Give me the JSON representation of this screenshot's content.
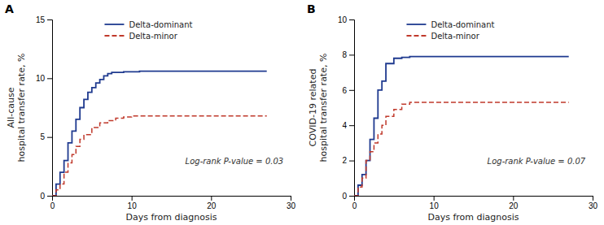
{
  "chart_data": [
    {
      "type": "step",
      "title": "A",
      "xlabel": "Days from diagnosis",
      "ylabel": "All-cause\nhospital transfer rate, %",
      "annotation": "Log-rank P-value = 0.03",
      "xlim": [
        0,
        30
      ],
      "xticks": [
        0,
        10,
        20,
        30
      ],
      "ylim": [
        0,
        15
      ],
      "yticks": [
        0,
        5,
        10,
        15
      ],
      "grid": false,
      "legend": "upper left",
      "series": [
        {
          "name": "Delta-dominant",
          "color": "#1f3a8f",
          "line_style": "solid",
          "x": [
            0,
            0.5,
            0.5,
            1,
            1,
            1.5,
            1.5,
            2,
            2,
            2.5,
            2.5,
            3,
            3,
            3.5,
            3.5,
            4,
            4,
            4.5,
            4.5,
            5,
            5,
            5.5,
            5.5,
            6,
            6,
            6.5,
            6.5,
            7,
            7,
            7.5,
            7.5,
            8,
            8,
            8.5,
            8.5,
            9,
            9,
            10,
            10,
            11,
            11,
            21,
            21,
            27
          ],
          "values": [
            0,
            0,
            1.0,
            1.0,
            2.0,
            2.0,
            3.0,
            3.0,
            4.5,
            4.5,
            5.5,
            5.5,
            6.5,
            6.5,
            7.5,
            7.5,
            8.2,
            8.2,
            8.8,
            8.8,
            9.2,
            9.2,
            9.6,
            9.6,
            9.9,
            9.9,
            10.2,
            10.2,
            10.4,
            10.4,
            10.5,
            10.5,
            10.5,
            10.5,
            10.5,
            10.5,
            10.55,
            10.55,
            10.55,
            10.55,
            10.6,
            10.6,
            10.6,
            10.6
          ]
        },
        {
          "name": "Delta-minor",
          "color": "#c0392b",
          "line_style": "dashed",
          "x": [
            0,
            0.5,
            0.5,
            1,
            1,
            1.5,
            1.5,
            2,
            2,
            2.5,
            2.5,
            3,
            3,
            3.5,
            3.5,
            4,
            4,
            5,
            5,
            6,
            6,
            7,
            7,
            8,
            8,
            9,
            9,
            10,
            10,
            21,
            21,
            27
          ],
          "values": [
            0,
            0,
            0.5,
            0.5,
            1.0,
            1.0,
            2.0,
            2.0,
            2.8,
            2.8,
            3.5,
            3.5,
            4.2,
            4.2,
            4.8,
            4.8,
            5.2,
            5.2,
            5.8,
            5.8,
            6.2,
            6.2,
            6.4,
            6.4,
            6.6,
            6.6,
            6.7,
            6.7,
            6.8,
            6.8,
            6.8,
            6.8
          ]
        }
      ]
    },
    {
      "type": "step",
      "title": "B",
      "xlabel": "Days from diagnosis",
      "ylabel": "COVID-19 related\nhospital transfer rate, %",
      "annotation": "Log-rank P-value = 0.07",
      "xlim": [
        0,
        30
      ],
      "xticks": [
        0,
        10,
        20,
        30
      ],
      "ylim": [
        0,
        10
      ],
      "yticks": [
        0,
        2,
        4,
        6,
        8,
        10
      ],
      "grid": false,
      "legend": "upper left",
      "series": [
        {
          "name": "Delta-dominant",
          "color": "#1f3a8f",
          "line_style": "solid",
          "x": [
            0,
            0.5,
            0.5,
            1,
            1,
            1.5,
            1.5,
            2,
            2,
            2.5,
            2.5,
            3,
            3,
            3.5,
            3.5,
            4,
            4,
            5,
            5,
            6,
            6,
            7,
            7,
            8,
            8,
            9,
            9,
            21,
            21,
            27
          ],
          "values": [
            0,
            0,
            0.6,
            0.6,
            1.2,
            1.2,
            2.0,
            2.0,
            3.2,
            3.2,
            4.4,
            4.4,
            6.0,
            6.0,
            6.5,
            6.5,
            7.5,
            7.5,
            7.8,
            7.8,
            7.85,
            7.85,
            7.9,
            7.9,
            7.9,
            7.9,
            7.9,
            7.9,
            7.9,
            7.9
          ]
        },
        {
          "name": "Delta-minor",
          "color": "#c0392b",
          "line_style": "dashed",
          "x": [
            0,
            0.5,
            0.5,
            1,
            1,
            1.5,
            1.5,
            2,
            2,
            2.5,
            2.5,
            3,
            3,
            3.5,
            3.5,
            4,
            4,
            5,
            5,
            6,
            6,
            7,
            7,
            8,
            8,
            9,
            9,
            10,
            10,
            21,
            21,
            27
          ],
          "values": [
            0,
            0,
            0.5,
            0.5,
            1.0,
            1.0,
            2.0,
            2.0,
            2.5,
            2.5,
            3.0,
            3.0,
            3.5,
            3.5,
            4.0,
            4.0,
            4.5,
            4.5,
            4.9,
            4.9,
            5.2,
            5.2,
            5.3,
            5.3,
            5.3,
            5.3,
            5.3,
            5.3,
            5.3,
            5.3,
            5.3,
            5.3
          ]
        }
      ]
    }
  ]
}
